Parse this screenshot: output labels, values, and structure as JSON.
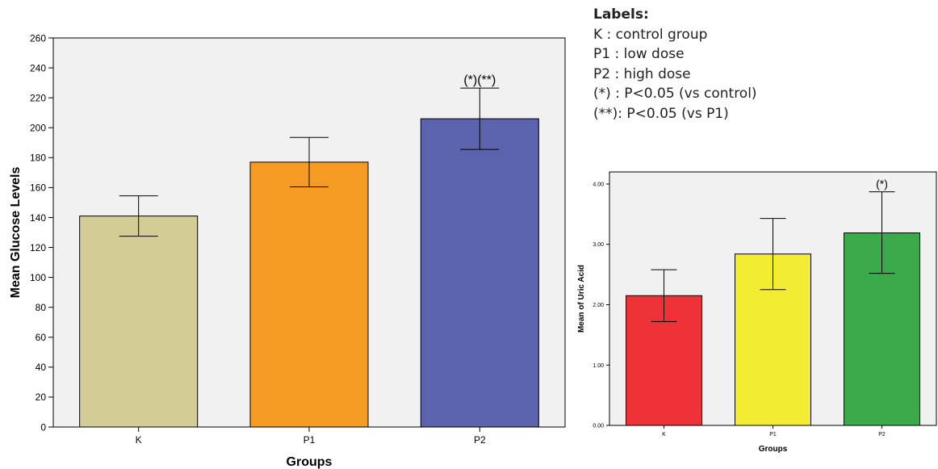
{
  "legend": {
    "title": "Labels:",
    "items": [
      "K : control group",
      "P1 : low dose",
      "P2 : high dose",
      "(*) : P<0.05 (vs control)",
      "(**): P<0.05 (vs P1)"
    ]
  },
  "chart_data": [
    {
      "type": "bar",
      "xlabel": "Groups",
      "ylabel": "Mean Glucose Levels",
      "categories": [
        "K",
        "P1",
        "P2"
      ],
      "values": [
        141,
        177,
        206
      ],
      "error_low": [
        127.5,
        160.5,
        185.5
      ],
      "error_high": [
        154.5,
        193.5,
        226.5
      ],
      "annotations": [
        "",
        "",
        "(*)(**)"
      ],
      "ylim": [
        0,
        260
      ],
      "yticks": [
        "0",
        "20",
        "40",
        "60",
        "80",
        "100",
        "120",
        "140",
        "160",
        "180",
        "200",
        "220",
        "240",
        "260"
      ],
      "colors": [
        "#d3cd95",
        "#f59a22",
        "#5b63ae"
      ],
      "background": "#f1f1f1",
      "grid": false
    },
    {
      "type": "bar",
      "xlabel": "Groups",
      "ylabel": "Mean of Uric Acid",
      "categories": [
        "K",
        "P1",
        "P2"
      ],
      "values": [
        2.15,
        2.84,
        3.19
      ],
      "error_low": [
        1.72,
        2.25,
        2.52
      ],
      "error_high": [
        2.58,
        3.43,
        3.87
      ],
      "annotations": [
        "",
        "",
        "(*)"
      ],
      "ylim": [
        0,
        4.2
      ],
      "yticks": [
        "0.00",
        "1.00",
        "2.00",
        "3.00",
        "4.00"
      ],
      "colors": [
        "#ee3238",
        "#f2ec33",
        "#3aaa4b"
      ],
      "background": "#f1f1f1",
      "grid": false
    }
  ]
}
